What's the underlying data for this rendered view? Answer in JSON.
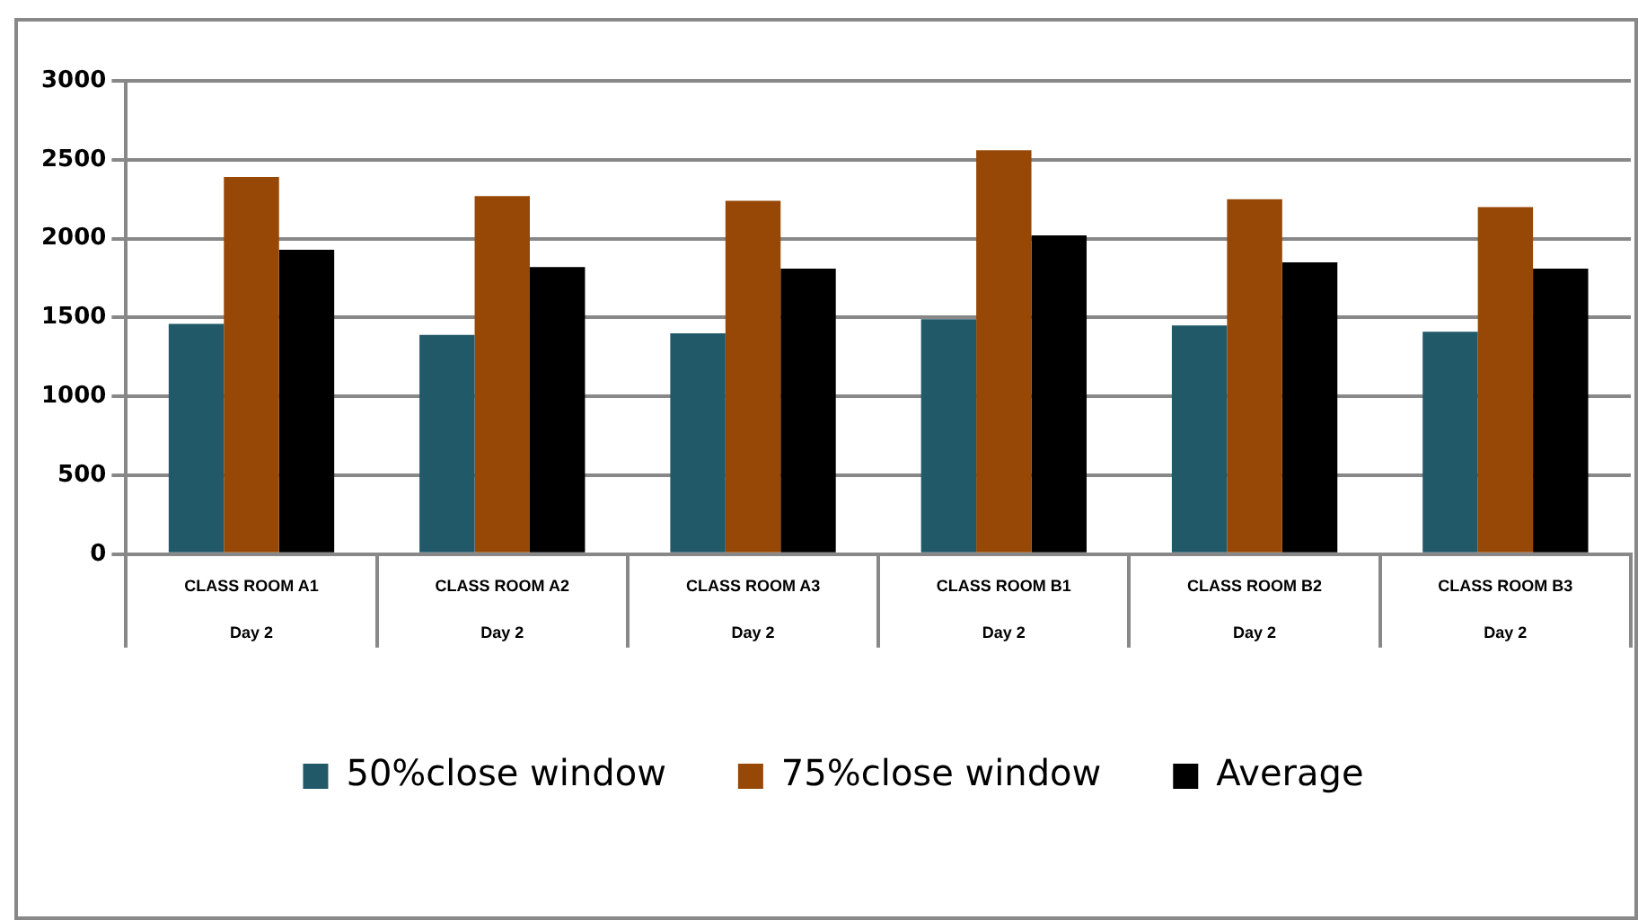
{
  "chart_data": {
    "type": "bar",
    "categories": [
      "CLASS ROOM A1\nDay 2",
      "CLASS ROOM A2\nDay 2",
      "CLASS ROOM A3\nDay 2",
      "CLASS ROOM B1\nDay 2",
      "CLASS ROOM B2\nDay 2",
      "CLASS ROOM B3\nDay 2"
    ],
    "series": [
      {
        "name": "50%close window",
        "color": "#215968",
        "values": [
          1460,
          1390,
          1400,
          1490,
          1450,
          1410
        ]
      },
      {
        "name": "75%close window",
        "color": "#974806",
        "values": [
          2390,
          2270,
          2240,
          2560,
          2250,
          2200
        ]
      },
      {
        "name": "Average",
        "color": "#000000",
        "values": [
          1930,
          1820,
          1810,
          2020,
          1850,
          1810
        ]
      }
    ],
    "ylim": [
      0,
      3000
    ],
    "yticks": [
      0,
      500,
      1000,
      1500,
      2000,
      2500,
      3000
    ],
    "grid": "y",
    "legend": "bottom"
  }
}
